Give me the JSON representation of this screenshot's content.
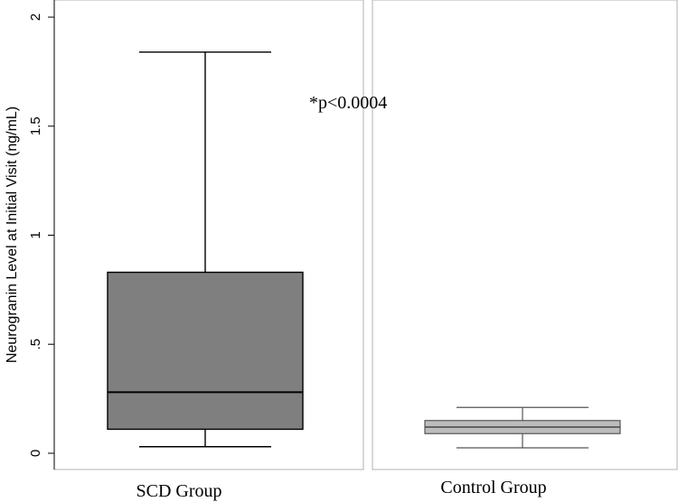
{
  "chart_data": {
    "type": "box",
    "ylabel": "Neurogranin Level at Initial Visit (ng/mL)",
    "ylim": [
      0,
      2
    ],
    "yticks": [
      {
        "value": 0,
        "label": "0"
      },
      {
        "value": 0.5,
        "label": ".5"
      },
      {
        "value": 1,
        "label": "1"
      },
      {
        "value": 1.5,
        "label": "1.5"
      },
      {
        "value": 2,
        "label": "2"
      }
    ],
    "groups": [
      {
        "name": "SCD Group",
        "min": 0.03,
        "q1": 0.11,
        "median": 0.28,
        "q3": 0.83,
        "max": 1.84,
        "color": "#7f7f7f",
        "whisker_color": "#000000"
      },
      {
        "name": "Control Group",
        "min": 0.025,
        "q1": 0.09,
        "median": 0.12,
        "q3": 0.15,
        "max": 0.21,
        "color": "#bdbdbd",
        "whisker_color": "#555555"
      }
    ],
    "annotation": "*p<0.0004",
    "grid": false,
    "legend": "none"
  }
}
